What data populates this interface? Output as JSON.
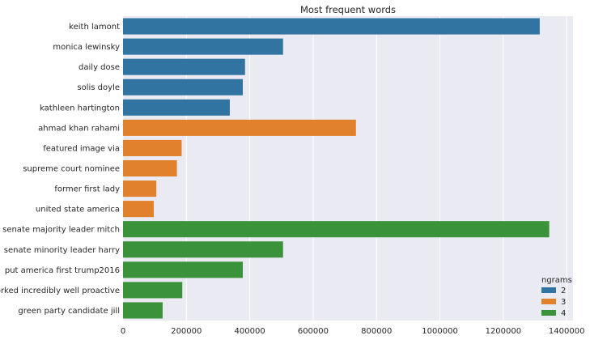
{
  "chart_data": {
    "type": "bar",
    "orientation": "horizontal",
    "title": "Most frequent words",
    "xlabel": "",
    "ylabel": "",
    "xlim": [
      0,
      1420000
    ],
    "x_ticks": [
      0,
      200000,
      400000,
      600000,
      800000,
      1000000,
      1200000,
      1400000
    ],
    "grid": true,
    "legend": {
      "title": "ngrams",
      "position": "bottom-right",
      "entries": [
        {
          "label": "2",
          "color": "#3274a1"
        },
        {
          "label": "3",
          "color": "#e1812c"
        },
        {
          "label": "4",
          "color": "#3a923a"
        }
      ]
    },
    "categories": [
      "keith lamont",
      "monica lewinsky",
      "daily dose",
      "solis doyle",
      "kathleen hartington",
      "ahmad khan rahami",
      "featured image via",
      "supreme court nominee",
      "former first lady",
      "united state america",
      "senate majority leader mitch",
      "senate minority leader harry",
      "put america first trump2016",
      "worked incredibly well proactive",
      "green party candidate jill"
    ],
    "values": [
      1315000,
      505000,
      385000,
      378000,
      337000,
      735000,
      185000,
      170000,
      105000,
      97000,
      1345000,
      505000,
      378000,
      187000,
      125000
    ],
    "groups": [
      "2",
      "2",
      "2",
      "2",
      "2",
      "3",
      "3",
      "3",
      "3",
      "3",
      "4",
      "4",
      "4",
      "4",
      "4"
    ]
  }
}
